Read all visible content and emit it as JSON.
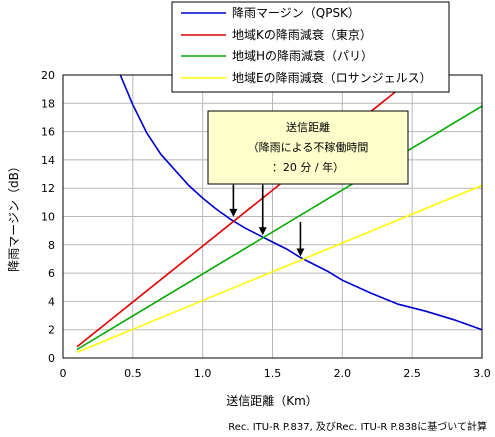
{
  "chart_data": {
    "type": "line",
    "title": "",
    "xlabel": "送信距離（Km）",
    "ylabel": "降雨マージン（dB）",
    "xlim": [
      0,
      3.0
    ],
    "ylim": [
      0,
      20
    ],
    "x_ticks": [
      "0",
      "0.5",
      "1.0",
      "1.5",
      "2.0",
      "2.5",
      "3.0"
    ],
    "y_ticks": [
      "0",
      "2",
      "4",
      "6",
      "8",
      "10",
      "12",
      "14",
      "16",
      "18",
      "20"
    ],
    "grid": true,
    "legend_position": "top-right",
    "series": [
      {
        "name": "降雨マージン（QPSK）",
        "color": "#0000cc",
        "x": [
          0.41,
          0.5,
          0.6,
          0.7,
          0.8,
          0.9,
          1.0,
          1.1,
          1.2,
          1.3,
          1.4,
          1.5,
          1.6,
          1.7,
          1.8,
          1.9,
          2.0,
          2.2,
          2.4,
          2.6,
          2.8,
          3.0
        ],
        "y": [
          20.0,
          17.9,
          15.9,
          14.4,
          13.3,
          12.2,
          11.3,
          10.5,
          9.8,
          9.2,
          8.7,
          8.2,
          7.7,
          7.1,
          6.6,
          6.1,
          5.5,
          4.6,
          3.8,
          3.3,
          2.7,
          2.0
        ]
      },
      {
        "name": "地域Kの降雨減衰（東京）",
        "color": "#dd0000",
        "x": [
          0.1,
          2.53
        ],
        "y": [
          0.8,
          20.0
        ]
      },
      {
        "name": "地域Hの降雨減衰（パリ）",
        "color": "#00aa00",
        "x": [
          0.1,
          3.0
        ],
        "y": [
          0.6,
          17.8
        ]
      },
      {
        "name": "地域Eの降雨減衰（ロサンジェルス）",
        "color": "#ffff00",
        "x": [
          0.1,
          3.0
        ],
        "y": [
          0.4,
          12.2
        ]
      }
    ],
    "annotations": [
      {
        "lines": [
          "送信距離",
          "（降雨による不稼働時間",
          "：20 分 / 年）"
        ],
        "arrows": [
          {
            "x": 1.22,
            "y": 9.9
          },
          {
            "x": 1.43,
            "y": 8.6
          },
          {
            "x": 1.7,
            "y": 7.1
          }
        ]
      }
    ]
  },
  "footer": {
    "source": "Rec. ITU-R P.837, 及びRec. ITU-R P.838に基づいて計算"
  }
}
